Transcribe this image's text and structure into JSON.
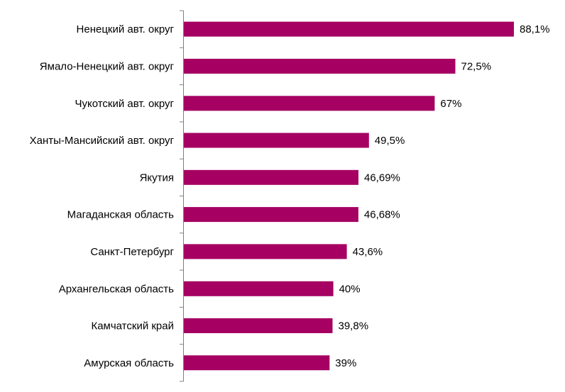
{
  "chart_data": {
    "type": "bar",
    "orientation": "horizontal",
    "categories": [
      "Ненецкий авт. округ",
      "Ямало-Ненецкий авт. округ",
      "Чукотский авт. округ",
      "Ханты-Мансийский авт. округ",
      "Якутия",
      "Магаданская область",
      "Санкт-Петербург",
      "Архангельская область",
      "Камчатский край",
      "Амурская область"
    ],
    "values": [
      88.1,
      72.5,
      67,
      49.5,
      46.69,
      46.68,
      43.6,
      40,
      39.8,
      39
    ],
    "value_labels": [
      "88,1%",
      "72,5%",
      "67%",
      "49,5%",
      "46,69%",
      "46,68%",
      "43,6%",
      "40%",
      "39,8%",
      "39%"
    ],
    "title": "",
    "xlabel": "",
    "ylabel": "",
    "xlim": [
      0,
      90
    ],
    "grid": false,
    "legend": "none",
    "colors": {
      "bar": "#A50062",
      "axis": "#7f7f7f",
      "text": "#000000"
    }
  }
}
